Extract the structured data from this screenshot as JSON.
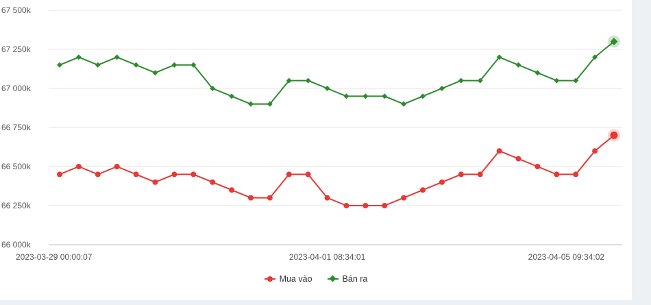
{
  "chart_data": {
    "type": "line",
    "title": "",
    "xlabel": "",
    "ylabel": "",
    "ylim": [
      66000,
      67500
    ],
    "y_ticks": [
      66000,
      66250,
      66500,
      66750,
      67000,
      67250,
      67500
    ],
    "y_tick_labels": [
      "66 000k",
      "66 250k",
      "66 500k",
      "66 750k",
      "67 000k",
      "67 250k",
      "67 500k"
    ],
    "x_tick_labels": [
      {
        "index": 0,
        "label": "2023-03-29 00:00:07"
      },
      {
        "index": 14,
        "label": "2023-04-01 08:34:01"
      },
      {
        "index": 28,
        "label": "2023-04-05 09:34:02"
      }
    ],
    "grid": true,
    "legend_position": "bottom-center",
    "series": [
      {
        "name": "Mua vào",
        "color": "#e53935",
        "marker": "circle",
        "values": [
          66450,
          66500,
          66450,
          66500,
          66450,
          66400,
          66450,
          66450,
          66400,
          66350,
          66300,
          66300,
          66450,
          66450,
          66300,
          66250,
          66250,
          66250,
          66300,
          66350,
          66400,
          66450,
          66450,
          66600,
          66550,
          66500,
          66450,
          66450,
          66600,
          66700
        ]
      },
      {
        "name": "Bán ra",
        "color": "#2e8b2e",
        "marker": "diamond",
        "values": [
          67150,
          67200,
          67150,
          67200,
          67150,
          67100,
          67150,
          67150,
          67000,
          66950,
          66900,
          66900,
          67050,
          67050,
          67000,
          66950,
          66950,
          66950,
          66900,
          66950,
          67000,
          67050,
          67050,
          67200,
          67150,
          67100,
          67050,
          67050,
          67200,
          67300
        ]
      }
    ]
  }
}
